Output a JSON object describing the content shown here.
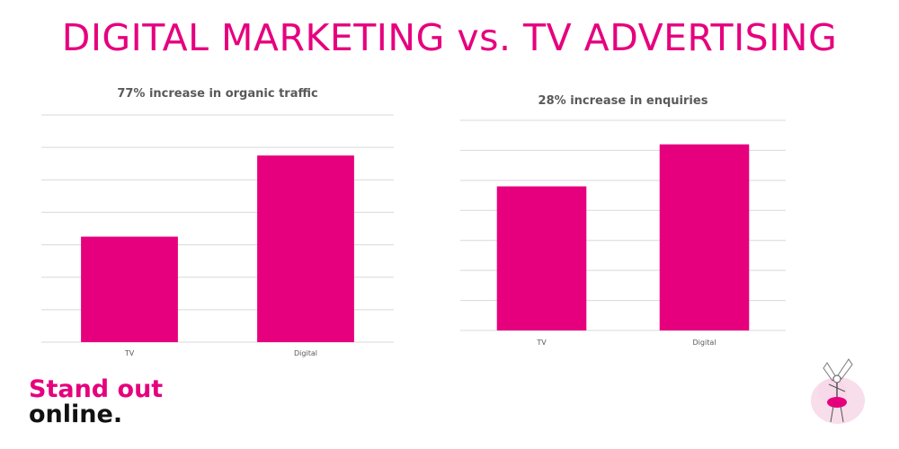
{
  "headline": "DIGITAL MARKETING vs. TV ADVERTISING",
  "brand": {
    "line1": "Stand out",
    "line2": "online."
  },
  "colors": {
    "accent": "#e6007e",
    "grid": "#d9d9d9",
    "text": "#595959"
  },
  "mascot": {
    "icon": "fairy-mascot-icon"
  },
  "chart_data": [
    {
      "type": "bar",
      "title": "77% increase in organic traffic",
      "categories": [
        "TV",
        "Digital"
      ],
      "values": [
        3.25,
        5.75
      ],
      "ylim": [
        0,
        7
      ],
      "grid": true,
      "color": "#e6007e"
    },
    {
      "type": "bar",
      "title": "28% increase in enquiries",
      "categories": [
        "TV",
        "Digital"
      ],
      "values": [
        4.8,
        6.2
      ],
      "ylim": [
        0,
        7
      ],
      "grid": true,
      "color": "#e6007e"
    }
  ]
}
